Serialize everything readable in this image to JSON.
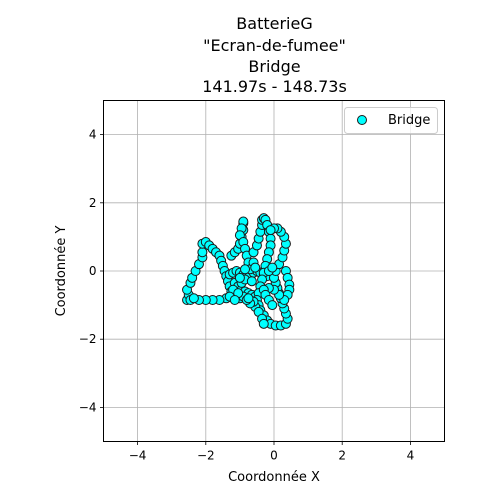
{
  "chart_data": {
    "type": "scatter",
    "title_lines": [
      "BatterieG",
      "\"Ecran-de-fumee\"",
      "Bridge",
      "141.97s - 148.73s"
    ],
    "xlabel": "Coordonnée X",
    "ylabel": "Coordonnée Y",
    "xlim": [
      -5,
      5
    ],
    "ylim": [
      -5,
      5
    ],
    "xticks": [
      -4,
      -2,
      0,
      2,
      4
    ],
    "yticks": [
      -4,
      -2,
      0,
      2,
      4
    ],
    "xtick_labels": [
      "−4",
      "−2",
      "0",
      "2",
      "4"
    ],
    "ytick_labels": [
      "−4",
      "−2",
      "0",
      "2",
      "4"
    ],
    "grid": true,
    "legend_position": "top-right",
    "series": [
      {
        "name": "Bridge",
        "marker_fill": "#00ffff",
        "marker_edge": "#1a1a1a",
        "points": [
          [
            -2.55,
            -0.85
          ],
          [
            -2.5,
            -0.7
          ],
          [
            -2.45,
            -0.85
          ],
          [
            -2.55,
            -0.55
          ],
          [
            -2.45,
            -0.35
          ],
          [
            -2.4,
            -0.2
          ],
          [
            -2.3,
            0.0
          ],
          [
            -2.2,
            0.2
          ],
          [
            -2.1,
            0.4
          ],
          [
            -2.1,
            0.55
          ],
          [
            -2.1,
            0.8
          ],
          [
            -2.0,
            0.85
          ],
          [
            -1.9,
            0.75
          ],
          [
            -1.8,
            0.65
          ],
          [
            -1.7,
            0.55
          ],
          [
            -1.6,
            0.45
          ],
          [
            -1.55,
            0.3
          ],
          [
            -1.5,
            0.15
          ],
          [
            -1.45,
            0.0
          ],
          [
            -1.4,
            -0.15
          ],
          [
            -1.35,
            -0.3
          ],
          [
            -1.3,
            -0.45
          ],
          [
            -1.25,
            -0.6
          ],
          [
            -1.2,
            -0.75
          ],
          [
            -1.4,
            -0.8
          ],
          [
            -1.6,
            -0.85
          ],
          [
            -1.8,
            -0.85
          ],
          [
            -2.0,
            -0.85
          ],
          [
            -2.2,
            -0.85
          ],
          [
            -2.35,
            -0.8
          ],
          [
            -1.3,
            -0.1
          ],
          [
            -1.2,
            -0.05
          ],
          [
            -1.1,
            0.0
          ],
          [
            -1.0,
            -0.05
          ],
          [
            -0.9,
            -0.1
          ],
          [
            -0.8,
            -0.15
          ],
          [
            -0.7,
            -0.1
          ],
          [
            -0.6,
            -0.05
          ],
          [
            -0.5,
            0.0
          ],
          [
            -0.4,
            -0.05
          ],
          [
            -0.3,
            -0.1
          ],
          [
            -0.2,
            -0.15
          ],
          [
            -1.15,
            -0.35
          ],
          [
            -1.05,
            -0.45
          ],
          [
            -0.95,
            -0.55
          ],
          [
            -0.85,
            -0.6
          ],
          [
            -0.75,
            -0.65
          ],
          [
            -0.65,
            -0.7
          ],
          [
            -0.55,
            -0.75
          ],
          [
            -1.1,
            -0.75
          ],
          [
            -1.0,
            -0.8
          ],
          [
            -0.9,
            -0.75
          ],
          [
            -1.2,
            -0.55
          ],
          [
            -1.05,
            -0.65
          ],
          [
            -0.95,
            -0.35
          ],
          [
            -0.85,
            -0.25
          ],
          [
            -1.25,
            0.45
          ],
          [
            -1.15,
            0.55
          ],
          [
            -1.05,
            0.65
          ],
          [
            -1.0,
            0.8
          ],
          [
            -0.95,
            1.0
          ],
          [
            -0.9,
            1.2
          ],
          [
            -0.9,
            1.4
          ],
          [
            -0.9,
            1.45
          ],
          [
            -0.95,
            1.25
          ],
          [
            -1.0,
            1.05
          ],
          [
            -0.9,
            0.85
          ],
          [
            -0.85,
            0.65
          ],
          [
            -0.8,
            0.45
          ],
          [
            -0.75,
            0.25
          ],
          [
            -0.7,
            0.05
          ],
          [
            -0.6,
            0.55
          ],
          [
            -0.5,
            0.75
          ],
          [
            -0.45,
            0.95
          ],
          [
            -0.4,
            1.15
          ],
          [
            -0.35,
            1.35
          ],
          [
            -0.35,
            1.5
          ],
          [
            -0.3,
            1.55
          ],
          [
            -0.25,
            1.5
          ],
          [
            -0.2,
            1.35
          ],
          [
            -0.15,
            1.15
          ],
          [
            -0.1,
            0.95
          ],
          [
            -0.1,
            0.75
          ],
          [
            -0.15,
            0.55
          ],
          [
            -0.2,
            0.35
          ],
          [
            -0.25,
            0.15
          ],
          [
            -0.3,
            -0.05
          ],
          [
            -0.35,
            -0.25
          ],
          [
            -0.4,
            -0.45
          ],
          [
            -0.45,
            -0.65
          ],
          [
            -0.5,
            -0.85
          ],
          [
            -0.45,
            -1.0
          ],
          [
            -0.4,
            -1.15
          ],
          [
            -0.3,
            -1.3
          ],
          [
            -0.2,
            -1.45
          ],
          [
            -0.1,
            -1.55
          ],
          [
            0.05,
            -1.6
          ],
          [
            0.2,
            -1.6
          ],
          [
            0.35,
            -1.55
          ],
          [
            0.4,
            -1.4
          ],
          [
            0.35,
            -1.25
          ],
          [
            0.3,
            -1.1
          ],
          [
            0.25,
            -0.95
          ],
          [
            0.2,
            -0.8
          ],
          [
            0.15,
            -0.65
          ],
          [
            0.1,
            -0.5
          ],
          [
            0.05,
            -0.35
          ],
          [
            0.0,
            -0.2
          ],
          [
            0.05,
            0.0
          ],
          [
            0.15,
            0.2
          ],
          [
            0.25,
            0.4
          ],
          [
            0.3,
            0.6
          ],
          [
            0.35,
            0.8
          ],
          [
            0.3,
            1.0
          ],
          [
            0.2,
            1.15
          ],
          [
            0.1,
            1.25
          ],
          [
            0.0,
            1.25
          ],
          [
            -0.1,
            1.2
          ],
          [
            0.35,
            0.0
          ],
          [
            0.4,
            -0.2
          ],
          [
            0.45,
            -0.4
          ],
          [
            0.45,
            -0.55
          ],
          [
            0.4,
            -0.7
          ],
          [
            0.3,
            -0.85
          ],
          [
            0.15,
            -0.7
          ],
          [
            0.0,
            -0.55
          ],
          [
            -0.15,
            -0.5
          ],
          [
            -0.3,
            -0.55
          ],
          [
            -0.55,
            -1.05
          ],
          [
            -0.45,
            -1.2
          ],
          [
            -0.35,
            -1.4
          ],
          [
            -0.3,
            -1.55
          ],
          [
            -0.6,
            -0.9
          ],
          [
            -0.7,
            -0.95
          ],
          [
            -0.8,
            -0.85
          ],
          [
            -0.25,
            -0.7
          ],
          [
            -0.15,
            -0.85
          ],
          [
            -0.05,
            -1.0
          ],
          [
            -0.15,
            0.0
          ],
          [
            -0.05,
            0.1
          ],
          [
            -0.6,
            0.25
          ],
          [
            -0.55,
            0.1
          ],
          [
            -0.65,
            -0.3
          ],
          [
            -1.3,
            -0.75
          ],
          [
            -1.15,
            -0.85
          ],
          [
            -0.75,
            -0.8
          ],
          [
            -1.0,
            -0.2
          ],
          [
            -0.85,
            0.05
          ]
        ]
      }
    ]
  }
}
